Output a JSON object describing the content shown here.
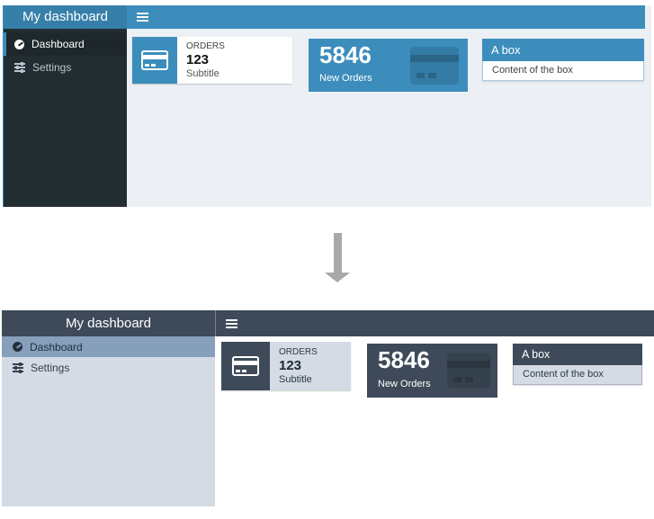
{
  "colors": {
    "top-primary": "#3c8dbc",
    "top-logo": "#367fa9",
    "top-sidebar": "#222d32",
    "top-sidebar-active": "#1e282c",
    "top-sidebar-text": "#b8c7ce",
    "top-content-bg": "#ecf0f5",
    "bottom-primary": "#3e4a59",
    "bottom-sidebar": "#d4dbe4",
    "bottom-active": "#86a0bb",
    "bottom-dark-text": "#2b3a47",
    "arrow": "#a8a8a8"
  },
  "top": {
    "brand": "My dashboard",
    "menu": [
      {
        "label": "Dashboard",
        "icon": "gauge-icon",
        "active": true
      },
      {
        "label": "Settings",
        "icon": "sliders-icon",
        "active": false
      }
    ],
    "navbar": {
      "toggle_icon": "hamburger-icon"
    },
    "info_box": {
      "icon": "credit-card-icon",
      "label": "ORDERS",
      "number": "123",
      "subtitle": "Subtitle"
    },
    "widget": {
      "number": "5846",
      "label": "New Orders",
      "icon": "credit-card-icon"
    },
    "box": {
      "title": "A box",
      "content": "Content of the box"
    }
  },
  "bottom": {
    "brand": "My dashboard",
    "menu": [
      {
        "label": "Dashboard",
        "icon": "gauge-icon",
        "active": true
      },
      {
        "label": "Settings",
        "icon": "sliders-icon",
        "active": false
      }
    ],
    "navbar": {
      "toggle_icon": "hamburger-icon"
    },
    "info_box": {
      "icon": "credit-card-icon",
      "label": "ORDERS",
      "number": "123",
      "subtitle": "Subtitle"
    },
    "widget": {
      "number": "5846",
      "label": "New Orders",
      "icon": "credit-card-icon"
    },
    "box": {
      "title": "A box",
      "content": "Content of the box"
    }
  }
}
